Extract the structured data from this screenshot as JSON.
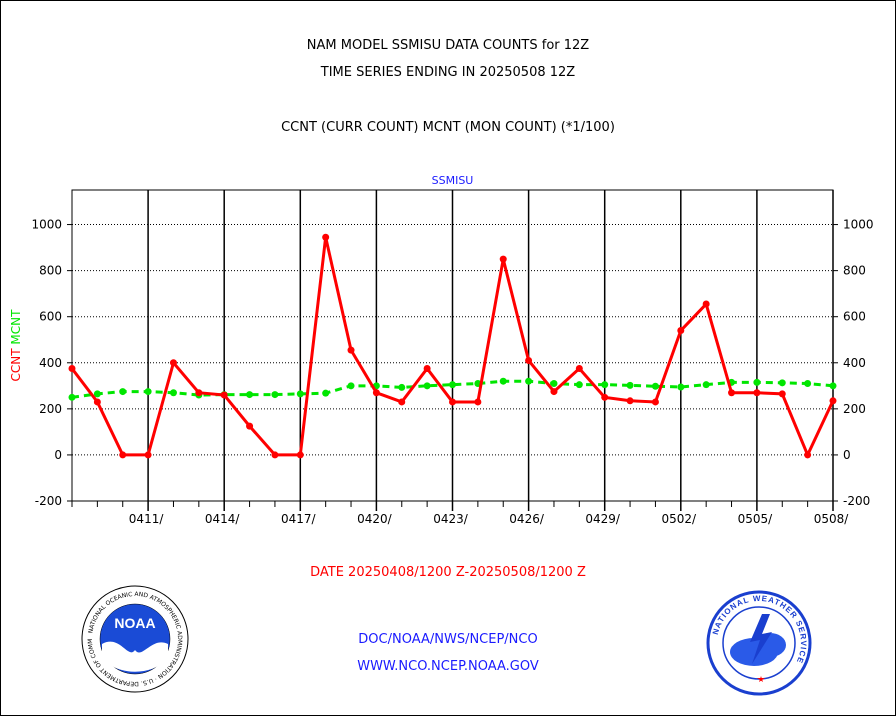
{
  "header": {
    "title_line1": "NAM MODEL SSMISU DATA COUNTS for 12Z",
    "title_line2": "TIME SERIES ENDING IN 20250508 12Z",
    "title_line3": "CCNT (CURR COUNT) MCNT (MON COUNT) (*1/100)"
  },
  "footer": {
    "date_range": "DATE 20250408/1200 Z-20250508/1200 Z",
    "link1": "DOC/NOAA/NWS/NCEP/NCO",
    "link2": "WWW.NCO.NCEP.NOAA.GOV"
  },
  "logos": {
    "left": "noaa-logo",
    "left_text": "NOAA",
    "left_ring_text": "NATIONAL OCEANIC AND ATMOSPHERIC ADMINISTRATION · U.S. DEPARTMENT OF COMMERCE",
    "right": "nws-logo",
    "right_ring_text": "NATIONAL WEATHER SERVICE"
  },
  "colors": {
    "ccnt": "#ff0000",
    "mcnt": "#00e600",
    "text_blue": "#1a1aff"
  },
  "chart_data": {
    "type": "line",
    "title": "SSMISU",
    "ylabel_left": "CCNT",
    "ylabel_right": "MCNT",
    "ylim": [
      -200,
      1150
    ],
    "yticks": [
      -200,
      0,
      200,
      400,
      600,
      800,
      1000
    ],
    "grid": true,
    "x_tick_labels": [
      "0411/",
      "0414/",
      "0417/",
      "0420/",
      "0423/",
      "0426/",
      "0429/",
      "0502/",
      "0505/",
      "0508/"
    ],
    "x": [
      "0408",
      "0409",
      "0410",
      "0411",
      "0412",
      "0413",
      "0414",
      "0415",
      "0416",
      "0417",
      "0418",
      "0419",
      "0420",
      "0421",
      "0422",
      "0423",
      "0424",
      "0425",
      "0426",
      "0427",
      "0428",
      "0429",
      "0430",
      "0501",
      "0502",
      "0503",
      "0504",
      "0505",
      "0506",
      "0507",
      "0508"
    ],
    "series": [
      {
        "name": "CCNT",
        "values": [
          375,
          230,
          0,
          0,
          400,
          270,
          260,
          125,
          0,
          0,
          945,
          455,
          270,
          230,
          375,
          230,
          230,
          850,
          410,
          275,
          375,
          250,
          235,
          230,
          540,
          655,
          270,
          270,
          265,
          0,
          235
        ]
      },
      {
        "name": "MCNT",
        "values": [
          250,
          265,
          275,
          275,
          270,
          260,
          262,
          262,
          262,
          265,
          268,
          300,
          300,
          293,
          300,
          305,
          310,
          320,
          320,
          310,
          305,
          305,
          302,
          298,
          295,
          305,
          315,
          315,
          313,
          310,
          300
        ]
      }
    ]
  }
}
